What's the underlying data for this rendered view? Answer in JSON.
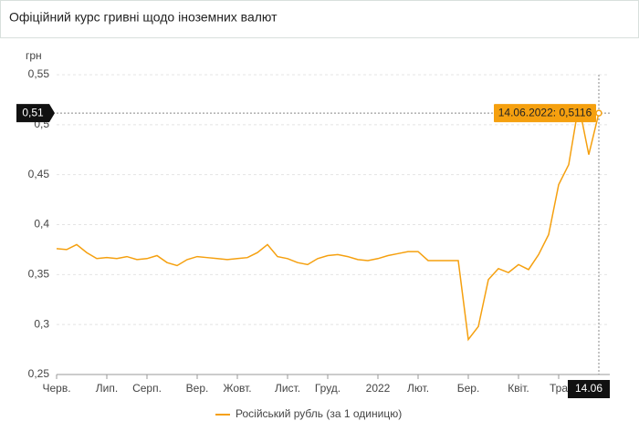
{
  "header": {
    "title": "Офіційний курс гривні щодо іноземних валют"
  },
  "chart_data": {
    "type": "line",
    "y_axis_label": "грн",
    "categories": [
      "Черв.",
      null,
      null,
      null,
      null,
      "Лип.",
      null,
      null,
      null,
      "Серп.",
      null,
      null,
      null,
      null,
      "Вер.",
      null,
      null,
      null,
      "Жовт.",
      null,
      null,
      null,
      null,
      "Лист.",
      null,
      null,
      null,
      "Груд.",
      null,
      null,
      null,
      null,
      "2022",
      null,
      null,
      null,
      "Лют.",
      null,
      null,
      null,
      null,
      "Бер.",
      null,
      null,
      null,
      null,
      "Квіт.",
      null,
      null,
      null,
      "Тра",
      null,
      null,
      null,
      "14.06"
    ],
    "series": [
      {
        "name": "Російський рубль (за 1 одиницю)",
        "color": "#f5a00f",
        "values": [
          0.376,
          0.375,
          0.38,
          0.372,
          0.366,
          0.367,
          0.366,
          0.368,
          0.365,
          0.366,
          0.369,
          0.362,
          0.359,
          0.365,
          0.368,
          0.367,
          0.366,
          0.365,
          0.366,
          0.367,
          0.372,
          0.38,
          0.368,
          0.366,
          0.362,
          0.36,
          0.366,
          0.369,
          0.37,
          0.368,
          0.365,
          0.364,
          0.366,
          0.369,
          0.371,
          0.373,
          0.373,
          0.364,
          0.364,
          0.364,
          0.364,
          0.285,
          0.298,
          0.345,
          0.356,
          0.352,
          0.36,
          0.355,
          0.37,
          0.39,
          0.44,
          0.46,
          0.52,
          0.47,
          0.5116
        ]
      }
    ],
    "ylim": [
      0.25,
      0.55
    ],
    "yticks": [
      {
        "value": 0.25,
        "label": "0,25"
      },
      {
        "value": 0.3,
        "label": "0,3"
      },
      {
        "value": 0.35,
        "label": "0,35"
      },
      {
        "value": 0.4,
        "label": "0,4"
      },
      {
        "value": 0.45,
        "label": "0,45"
      },
      {
        "value": 0.5,
        "label": "0,5"
      },
      {
        "value": 0.55,
        "label": "0,55"
      }
    ],
    "grid": true,
    "crosshair_y_label": "0,51",
    "tooltip": "14.06.2022: 0,5116"
  }
}
